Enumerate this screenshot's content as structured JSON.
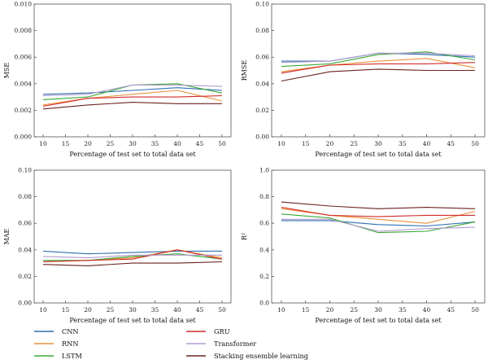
{
  "series_style": [
    {
      "name": "CNN",
      "color": "#2f6fb0"
    },
    {
      "name": "RNN",
      "color": "#e8913a"
    },
    {
      "name": "LSTM",
      "color": "#3aa935"
    },
    {
      "name": "GRU",
      "color": "#d22b2b"
    },
    {
      "name": "Transformer",
      "color": "#b39bd0"
    },
    {
      "name": "Stacking ensemble learning",
      "color": "#6b2323"
    }
  ],
  "legend_order": [
    "CNN",
    "RNN",
    "LSTM",
    "GRU",
    "Transformer",
    "Stacking ensemble learning"
  ],
  "chart_data": [
    {
      "type": "line",
      "xlabel": "Percentage of test set to total data set",
      "ylabel": "MSE",
      "x": [
        10,
        20,
        30,
        40,
        50
      ],
      "xticks": [
        10,
        15,
        20,
        25,
        30,
        35,
        40,
        45,
        50
      ],
      "ylim": [
        0,
        0.01
      ],
      "yticks": [
        "0.000",
        "0.002",
        "0.004",
        "0.006",
        "0.008",
        "0.010"
      ],
      "series": [
        {
          "name": "CNN",
          "values": [
            0.0032,
            0.0033,
            0.0035,
            0.0037,
            0.0035
          ]
        },
        {
          "name": "RNN",
          "values": [
            0.0024,
            0.0029,
            0.0032,
            0.0035,
            0.0027
          ]
        },
        {
          "name": "LSTM",
          "values": [
            0.0028,
            0.003,
            0.0039,
            0.004,
            0.0033
          ]
        },
        {
          "name": "GRU",
          "values": [
            0.0023,
            0.0029,
            0.003,
            0.003,
            0.0031
          ]
        },
        {
          "name": "Transformer",
          "values": [
            0.0031,
            0.0032,
            0.0039,
            0.0039,
            0.0038
          ]
        },
        {
          "name": "Stacking ensemble learning",
          "values": [
            0.0021,
            0.0024,
            0.0026,
            0.0025,
            0.0025
          ]
        }
      ]
    },
    {
      "type": "line",
      "xlabel": "Percentage of test set to total data set",
      "ylabel": "RMSE",
      "x": [
        10,
        20,
        30,
        40,
        50
      ],
      "xticks": [
        10,
        15,
        20,
        25,
        30,
        35,
        40,
        45,
        50
      ],
      "ylim": [
        0,
        0.1
      ],
      "yticks": [
        "0.00",
        "0.02",
        "0.04",
        "0.06",
        "0.08",
        "0.10"
      ],
      "series": [
        {
          "name": "CNN",
          "values": [
            0.057,
            0.057,
            0.063,
            0.062,
            0.06
          ]
        },
        {
          "name": "RNN",
          "values": [
            0.049,
            0.054,
            0.057,
            0.059,
            0.052
          ]
        },
        {
          "name": "LSTM",
          "values": [
            0.053,
            0.055,
            0.062,
            0.064,
            0.058
          ]
        },
        {
          "name": "GRU",
          "values": [
            0.048,
            0.054,
            0.055,
            0.055,
            0.056
          ]
        },
        {
          "name": "Transformer",
          "values": [
            0.056,
            0.057,
            0.063,
            0.063,
            0.061
          ]
        },
        {
          "name": "Stacking ensemble learning",
          "values": [
            0.042,
            0.049,
            0.051,
            0.05,
            0.05
          ]
        }
      ]
    },
    {
      "type": "line",
      "xlabel": "Percentage of test set to total data set",
      "ylabel": "MAE",
      "x": [
        10,
        20,
        30,
        40,
        50
      ],
      "xticks": [
        10,
        15,
        20,
        25,
        30,
        35,
        40,
        45,
        50
      ],
      "ylim": [
        0,
        0.1
      ],
      "yticks": [
        "0.00",
        "0.02",
        "0.04",
        "0.06",
        "0.08",
        "0.10"
      ],
      "series": [
        {
          "name": "CNN",
          "values": [
            0.039,
            0.037,
            0.038,
            0.039,
            0.039
          ]
        },
        {
          "name": "RNN",
          "values": [
            0.031,
            0.032,
            0.034,
            0.04,
            0.034
          ]
        },
        {
          "name": "LSTM",
          "values": [
            0.032,
            0.032,
            0.035,
            0.037,
            0.033
          ]
        },
        {
          "name": "GRU",
          "values": [
            0.031,
            0.032,
            0.033,
            0.04,
            0.033
          ]
        },
        {
          "name": "Transformer",
          "values": [
            0.035,
            0.034,
            0.036,
            0.036,
            0.036
          ]
        },
        {
          "name": "Stacking ensemble learning",
          "values": [
            0.029,
            0.028,
            0.03,
            0.03,
            0.031
          ]
        }
      ]
    },
    {
      "type": "line",
      "xlabel": "Percentage of test set to total data set",
      "ylabel": "R²",
      "x": [
        10,
        20,
        30,
        40,
        50
      ],
      "xticks": [
        10,
        15,
        20,
        25,
        30,
        35,
        40,
        45,
        50
      ],
      "ylim": [
        0,
        1
      ],
      "yticks": [
        "0.0",
        "0.2",
        "0.4",
        "0.6",
        "0.8",
        "1.0"
      ],
      "series": [
        {
          "name": "CNN",
          "values": [
            0.62,
            0.62,
            0.59,
            0.58,
            0.61
          ]
        },
        {
          "name": "RNN",
          "values": [
            0.71,
            0.66,
            0.63,
            0.6,
            0.69
          ]
        },
        {
          "name": "LSTM",
          "values": [
            0.67,
            0.64,
            0.53,
            0.54,
            0.61
          ]
        },
        {
          "name": "GRU",
          "values": [
            0.72,
            0.66,
            0.65,
            0.66,
            0.66
          ]
        },
        {
          "name": "Transformer",
          "values": [
            0.63,
            0.63,
            0.54,
            0.56,
            0.57
          ]
        },
        {
          "name": "Stacking ensemble learning",
          "values": [
            0.76,
            0.73,
            0.71,
            0.72,
            0.71
          ]
        }
      ]
    }
  ]
}
